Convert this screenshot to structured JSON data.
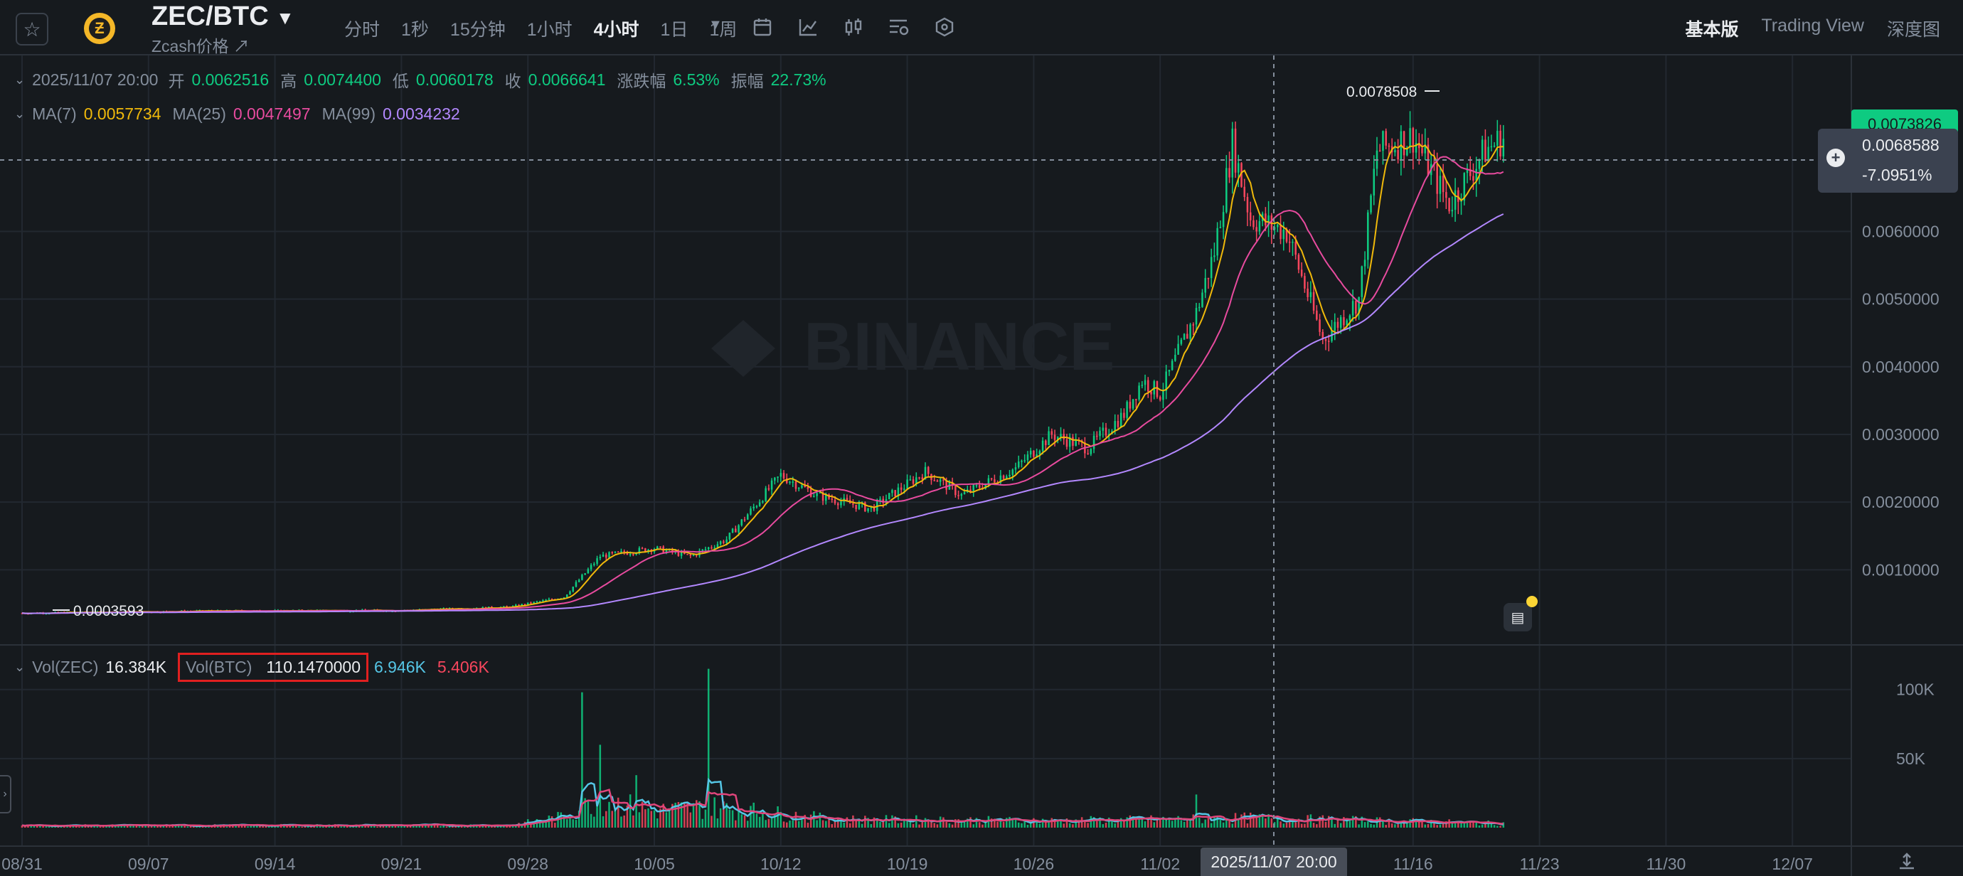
{
  "header": {
    "pair": "ZEC/BTC",
    "subtitle": "Zcash价格 ↗",
    "intervals": [
      "分时",
      "1秒",
      "15分钟",
      "1小时",
      "4小时",
      "1日",
      "1周"
    ],
    "active_interval": "4小时",
    "views": [
      "基本版",
      "Trading View",
      "深度图"
    ],
    "active_view": "基本版",
    "icons": [
      "calendar-icon",
      "line-chart-icon",
      "candle-icon",
      "settings-icon",
      "hexagon-icon"
    ]
  },
  "ohlc": {
    "time": "2025/11/07 20:00",
    "open_label": "开",
    "open": "0.0062516",
    "high_label": "高",
    "high": "0.0074400",
    "low_label": "低",
    "low": "0.0060178",
    "close_label": "收",
    "close": "0.0066641",
    "change_label": "涨跌幅",
    "change": "6.53%",
    "amp_label": "振幅",
    "amp": "22.73%"
  },
  "ma": {
    "ma7_label": "MA(7)",
    "ma7": "0.0057734",
    "ma25_label": "MA(25)",
    "ma25": "0.0047497",
    "ma99_label": "MA(99)",
    "ma99": "0.0034232"
  },
  "vol_legend": {
    "zec_label": "Vol(ZEC)",
    "zec": "16.384K",
    "btc_label": "Vol(BTC)",
    "btc": "110.1470000",
    "ma1": "6.946K",
    "ma2": "5.406K"
  },
  "price_labels": {
    "last_price": "0.0073826",
    "cross_price": "0.0068588",
    "cross_pct": "-7.0951%",
    "max_label": "0.0078508",
    "min_label": "0.0003593"
  },
  "watermark": "BINANCE",
  "crosshair_time": "2025/11/07 20:00",
  "colors": {
    "up": "#0ecb81",
    "down": "#f6465d",
    "ma7": "#f0b90b",
    "ma25": "#e84b9f",
    "ma99": "#b388ff",
    "vol_ma1": "#55c6e6",
    "vol_ma2": "#e0457b"
  },
  "chart_data": {
    "type": "candlestick",
    "title": "ZEC/BTC",
    "interval": "4小时",
    "x_ticks": [
      "08/31",
      "09/07",
      "09/14",
      "09/21",
      "09/28",
      "10/05",
      "10/12",
      "10/19",
      "10/26",
      "11/02",
      "11/16",
      "11/23",
      "11/30",
      "12/07"
    ],
    "y_ticks": [
      "0.0010000",
      "0.0020000",
      "0.0030000",
      "0.0040000",
      "0.0050000",
      "0.0060000"
    ],
    "y_tick_values": [
      0.001,
      0.002,
      0.003,
      0.004,
      0.005,
      0.006
    ],
    "ylim": [
      0.0001,
      0.0086
    ],
    "vol_ticks": [
      "50K",
      "100K"
    ],
    "vol_tick_values": [
      50000,
      100000
    ],
    "vol_ylim": [
      0,
      122000
    ],
    "start_date": "2025-08-31",
    "end_date": "2025-11-21",
    "close_anchors": [
      [
        "2025-08-31",
        0.00036
      ],
      [
        "2025-09-10",
        0.00039
      ],
      [
        "2025-09-21",
        0.0004
      ],
      [
        "2025-09-27",
        0.00045
      ],
      [
        "2025-09-30",
        0.0006
      ],
      [
        "2025-10-02",
        0.0012
      ],
      [
        "2025-10-05",
        0.00132
      ],
      [
        "2025-10-07",
        0.0012
      ],
      [
        "2025-10-09",
        0.00145
      ],
      [
        "2025-10-12",
        0.0024
      ],
      [
        "2025-10-14",
        0.0021
      ],
      [
        "2025-10-17",
        0.0019
      ],
      [
        "2025-10-20",
        0.00245
      ],
      [
        "2025-10-22",
        0.0021
      ],
      [
        "2025-10-25",
        0.0025
      ],
      [
        "2025-10-27",
        0.003
      ],
      [
        "2025-10-29",
        0.0028
      ],
      [
        "2025-10-31",
        0.0033
      ],
      [
        "2025-11-01",
        0.0038
      ],
      [
        "2025-11-02",
        0.0036
      ],
      [
        "2025-11-04",
        0.0048
      ],
      [
        "2025-11-05",
        0.0057
      ],
      [
        "2025-11-06",
        0.0073
      ],
      [
        "2025-11-07",
        0.0062
      ],
      [
        "2025-11-09",
        0.006
      ],
      [
        "2025-11-11",
        0.0044
      ],
      [
        "2025-11-13",
        0.005
      ],
      [
        "2025-11-14",
        0.0072
      ],
      [
        "2025-11-16",
        0.0074
      ],
      [
        "2025-11-18",
        0.0064
      ],
      [
        "2025-11-20",
        0.0072
      ],
      [
        "2025-11-21",
        0.00738
      ]
    ],
    "volume_anchors": [
      [
        "2025-08-31",
        1500
      ],
      [
        "2025-09-27",
        1800
      ],
      [
        "2025-09-30",
        8000
      ],
      [
        "2025-10-02",
        20000
      ],
      [
        "2025-10-05",
        12000
      ],
      [
        "2025-10-08",
        15000
      ],
      [
        "2025-10-15",
        6000
      ],
      [
        "2025-10-27",
        5000
      ],
      [
        "2025-11-03",
        6000
      ],
      [
        "2025-11-07",
        7000
      ],
      [
        "2025-11-14",
        5000
      ],
      [
        "2025-11-21",
        3000
      ]
    ],
    "volume_spikes": [
      [
        "2025-10-01",
        98000
      ],
      [
        "2025-10-02",
        60000
      ],
      [
        "2025-10-08",
        115000
      ],
      [
        "2025-10-04",
        38000
      ],
      [
        "2025-11-04",
        24000
      ]
    ],
    "high_marker": {
      "date": "2025-11-16",
      "value": 0.0078508
    },
    "low_marker": {
      "date": "2025-08-31",
      "value": 0.0003593
    }
  }
}
